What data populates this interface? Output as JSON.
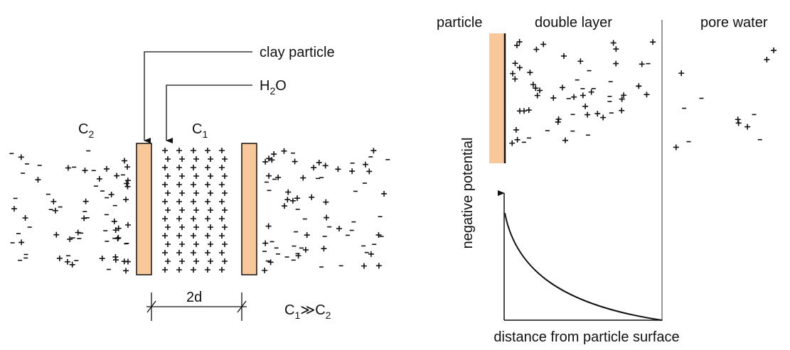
{
  "left": {
    "clay_particle": "clay particle",
    "h2o": [
      "H",
      "2",
      "O"
    ],
    "c2": [
      "C",
      "2"
    ],
    "c1": [
      "C",
      "1"
    ],
    "spacing": "2d",
    "relation": [
      "C",
      "1",
      "≫",
      "C",
      "2"
    ]
  },
  "right": {
    "particle": "particle",
    "double_layer": "double layer",
    "pore_water": "pore water",
    "y_axis": "negative potential",
    "x_axis": "distance from particle surface"
  }
}
